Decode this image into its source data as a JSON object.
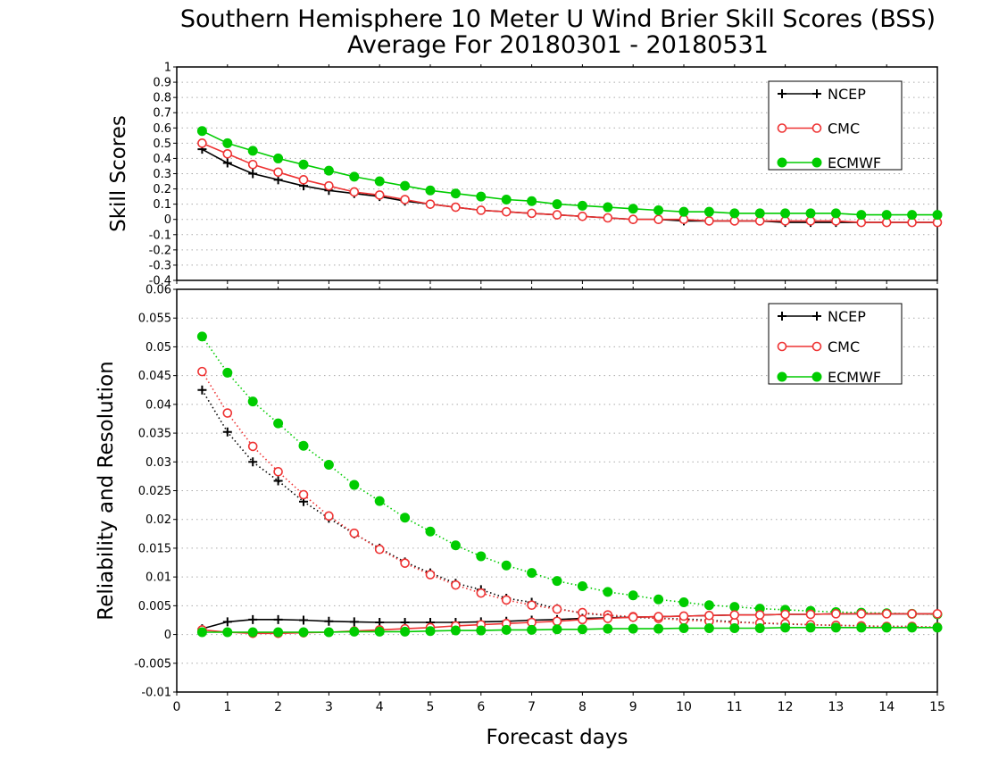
{
  "title_line1": "Southern Hemisphere 10 Meter U Wind Brier Skill Scores (BSS)",
  "title_line2": "Average For 20180301 - 20180531",
  "xlabel": "Forecast days",
  "colors": {
    "NCEP": "#000000",
    "CMC": "#ee3333",
    "ECMWF": "#00cc00",
    "grid": "#aaaaaa"
  },
  "chart_data": [
    {
      "type": "line",
      "ylabel": "Skill Scores",
      "xlim": [
        0,
        15
      ],
      "ylim": [
        -0.4,
        1
      ],
      "yticks": [
        -0.4,
        -0.3,
        -0.2,
        -0.1,
        0,
        0.1,
        0.2,
        0.3,
        0.4,
        0.5,
        0.6,
        0.7,
        0.8,
        0.9,
        1
      ],
      "ytick_labels": [
        "-0.4",
        "-0.3",
        "-0.2",
        "-0.1",
        "0",
        "0.1",
        "0.2",
        "0.3",
        "0.4",
        "0.5",
        "0.6",
        "0.7",
        "0.8",
        "0.9",
        "1"
      ],
      "grid": true,
      "legend": "top-right",
      "x": [
        0.5,
        1,
        1.5,
        2,
        2.5,
        3,
        3.5,
        4,
        4.5,
        5,
        5.5,
        6,
        6.5,
        7,
        7.5,
        8,
        8.5,
        9,
        9.5,
        10,
        10.5,
        11,
        11.5,
        12,
        12.5,
        13,
        13.5,
        14,
        14.5,
        15
      ],
      "series": [
        {
          "name": "NCEP",
          "marker": "plus",
          "line": "solid",
          "values": [
            0.46,
            0.37,
            0.3,
            0.26,
            0.22,
            0.19,
            0.17,
            0.15,
            0.12,
            0.1,
            0.08,
            0.06,
            0.05,
            0.04,
            0.03,
            0.02,
            0.01,
            0.0,
            0.0,
            -0.01,
            -0.01,
            -0.01,
            -0.01,
            -0.02,
            -0.02,
            -0.02,
            -0.02,
            -0.02,
            -0.02,
            -0.02
          ]
        },
        {
          "name": "CMC",
          "marker": "open-circle",
          "line": "solid",
          "values": [
            0.5,
            0.43,
            0.36,
            0.31,
            0.26,
            0.22,
            0.18,
            0.16,
            0.13,
            0.1,
            0.08,
            0.06,
            0.05,
            0.04,
            0.03,
            0.02,
            0.01,
            0.0,
            0.0,
            0.0,
            -0.01,
            -0.01,
            -0.01,
            -0.01,
            -0.01,
            -0.01,
            -0.02,
            -0.02,
            -0.02,
            -0.02
          ]
        },
        {
          "name": "ECMWF",
          "marker": "filled-circle",
          "line": "solid",
          "values": [
            0.58,
            0.5,
            0.45,
            0.4,
            0.36,
            0.32,
            0.28,
            0.25,
            0.22,
            0.19,
            0.17,
            0.15,
            0.13,
            0.12,
            0.1,
            0.09,
            0.08,
            0.07,
            0.06,
            0.05,
            0.05,
            0.04,
            0.04,
            0.04,
            0.04,
            0.04,
            0.03,
            0.03,
            0.03,
            0.03
          ]
        }
      ]
    },
    {
      "type": "line",
      "ylabel": "Reliability and Resolution",
      "xlim": [
        0,
        15
      ],
      "ylim": [
        -0.01,
        0.06
      ],
      "yticks": [
        -0.01,
        -0.005,
        0,
        0.005,
        0.01,
        0.015,
        0.02,
        0.025,
        0.03,
        0.035,
        0.04,
        0.045,
        0.05,
        0.055,
        0.06
      ],
      "ytick_labels": [
        "-0.01",
        "-0.005",
        "0",
        "0.005",
        "0.01",
        "0.015",
        "0.02",
        "0.025",
        "0.03",
        "0.035",
        "0.04",
        "0.045",
        "0.05",
        "0.055",
        "0.06"
      ],
      "grid": true,
      "legend": "top-right",
      "x": [
        0.5,
        1,
        1.5,
        2,
        2.5,
        3,
        3.5,
        4,
        4.5,
        5,
        5.5,
        6,
        6.5,
        7,
        7.5,
        8,
        8.5,
        9,
        9.5,
        10,
        10.5,
        11,
        11.5,
        12,
        12.5,
        13,
        13.5,
        14,
        14.5,
        15
      ],
      "series": [
        {
          "name": "NCEP",
          "marker": "plus",
          "line": "dotted",
          "values": [
            0.0425,
            0.0352,
            0.03,
            0.0267,
            0.0231,
            0.0202,
            0.0175,
            0.015,
            0.0126,
            0.0107,
            0.0089,
            0.0078,
            0.0063,
            0.0056,
            0.0045,
            0.0037,
            0.0033,
            0.003,
            0.0028,
            0.0027,
            0.0025,
            0.0022,
            0.002,
            0.0018,
            0.0017,
            0.0016,
            0.0015,
            0.0014,
            0.0014,
            0.0012
          ]
        },
        {
          "name": "CMC",
          "marker": "open-circle",
          "line": "dotted",
          "values": [
            0.0457,
            0.0385,
            0.0327,
            0.0283,
            0.0243,
            0.0206,
            0.0176,
            0.0148,
            0.0124,
            0.0104,
            0.0086,
            0.0072,
            0.006,
            0.0051,
            0.0044,
            0.0038,
            0.0034,
            0.0031,
            0.0028,
            0.0025,
            0.0023,
            0.0021,
            0.002,
            0.0019,
            0.0017,
            0.0016,
            0.0015,
            0.0014,
            0.0014,
            0.0013
          ]
        },
        {
          "name": "ECMWF",
          "marker": "filled-circle",
          "line": "dotted",
          "values": [
            0.0518,
            0.0455,
            0.0405,
            0.0367,
            0.0328,
            0.0295,
            0.026,
            0.0232,
            0.0203,
            0.0179,
            0.0155,
            0.0136,
            0.012,
            0.0107,
            0.0093,
            0.0084,
            0.0074,
            0.0068,
            0.0061,
            0.0056,
            0.0051,
            0.0048,
            0.0045,
            0.0043,
            0.0041,
            0.0039,
            0.0038,
            0.0037,
            0.0036,
            0.0035
          ]
        },
        {
          "name": "NCEP",
          "marker": "plus",
          "line": "solid",
          "values": [
            0.001,
            0.0022,
            0.0026,
            0.0026,
            0.0025,
            0.0023,
            0.0022,
            0.0021,
            0.0021,
            0.0021,
            0.0021,
            0.0022,
            0.0023,
            0.0025,
            0.0026,
            0.0028,
            0.0029,
            0.003,
            0.0031,
            0.0032,
            0.0033,
            0.0034,
            0.0034,
            0.0035,
            0.0035,
            0.0036,
            0.0036,
            0.0036,
            0.0036,
            0.0036
          ]
        },
        {
          "name": "CMC",
          "marker": "open-circle",
          "line": "solid",
          "values": [
            0.0008,
            0.0004,
            0.0002,
            0.0002,
            0.0003,
            0.0004,
            0.0006,
            0.0008,
            0.001,
            0.0012,
            0.0015,
            0.0017,
            0.0019,
            0.0021,
            0.0023,
            0.0026,
            0.0028,
            0.003,
            0.0031,
            0.0032,
            0.0033,
            0.0034,
            0.0034,
            0.0035,
            0.0035,
            0.0036,
            0.0036,
            0.0036,
            0.0036,
            0.0036
          ]
        },
        {
          "name": "ECMWF",
          "marker": "filled-circle",
          "line": "solid",
          "values": [
            0.0004,
            0.0004,
            0.0004,
            0.0004,
            0.0004,
            0.0004,
            0.0005,
            0.0005,
            0.0005,
            0.0006,
            0.0007,
            0.0007,
            0.0008,
            0.0008,
            0.0009,
            0.0009,
            0.001,
            0.001,
            0.001,
            0.0011,
            0.0011,
            0.0011,
            0.0011,
            0.0012,
            0.0012,
            0.0012,
            0.0012,
            0.0012,
            0.0012,
            0.0012
          ]
        }
      ]
    }
  ]
}
